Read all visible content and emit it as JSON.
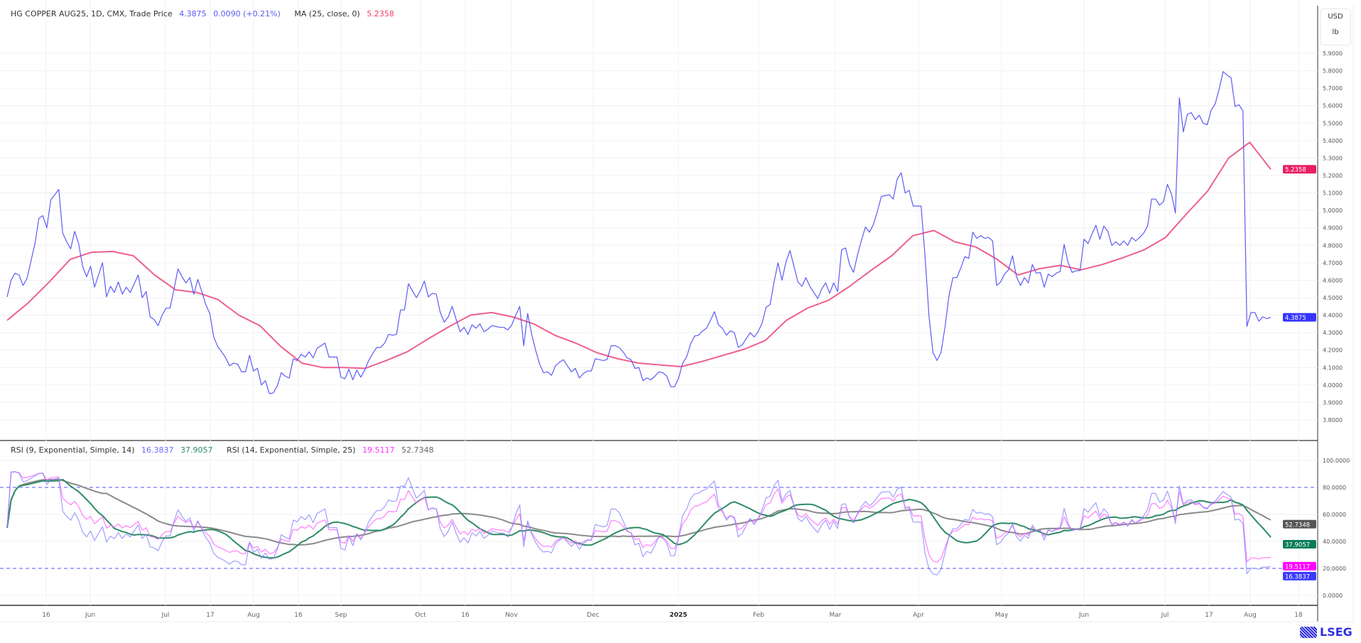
{
  "header": {
    "symbol": "HG COPPER AUG25, 1D, CMX, Trade Price",
    "last": "4.3875",
    "change": "0.0090 (+0.21%)",
    "ma_label": "MA (25, close, 0)",
    "ma_value": "5.2358"
  },
  "rsi_header": {
    "rsi1_label": "RSI (9, Exponential, Simple, 14)",
    "rsi1_value": "16.3837",
    "rsi1_ma_value": "37.9057",
    "rsi2_label": "RSI (14, Exponential, Simple, 25)",
    "rsi2_value": "19.5117",
    "rsi2_ma_value": "52.7348"
  },
  "unit": {
    "currency": "USD",
    "per": "lb"
  },
  "logo": "LSEG",
  "colors": {
    "price": "#5b5bf5",
    "ma": "#ef5f8c",
    "rsi1": "#7f7fff",
    "rsi2": "#ff66ff",
    "rsi1_ma": "#2e8b64",
    "rsi2_ma": "#8a8a8a",
    "price_tag": "#3535ff",
    "ma_tag": "#e91e63",
    "rsi1_tag": "#3a3aff",
    "rsi2_tag": "#ff00ff",
    "rsi1_ma_tag": "#0a7d5a",
    "rsi2_ma_tag": "#555555",
    "band": "#5050ff"
  },
  "chart_data": [
    {
      "type": "line",
      "title": "HG COPPER AUG25, 1D, CMX, Trade Price",
      "ylim": [
        3.7,
        6.0
      ],
      "y_ticks": [
        "5.9000",
        "5.8000",
        "5.7000",
        "5.6000",
        "5.5000",
        "5.4000",
        "5.3000",
        "5.2000",
        "5.1000",
        "5.0000",
        "4.9000",
        "4.8000",
        "4.7000",
        "4.6000",
        "4.5000",
        "4.4000",
        "4.3000",
        "4.2000",
        "4.1000",
        "4.0000",
        "3.9000",
        "3.8000"
      ],
      "x_ticks": [
        "16",
        "Jun",
        "Jul",
        "17",
        "Aug",
        "16",
        "Sep",
        "Oct",
        "16",
        "Nov",
        "Dec",
        "2025",
        "Feb",
        "Mar",
        "Apr",
        "May",
        "Jun",
        "Jul",
        "17",
        "Aug",
        "18"
      ],
      "grid": true,
      "series": [
        {
          "name": "Trade Price",
          "values": [
            4.505,
            4.6,
            4.64,
            4.63,
            4.57,
            4.61,
            4.71,
            4.81,
            4.955,
            4.97,
            4.9,
            5.06,
            5.09,
            5.12,
            4.87,
            4.82,
            4.78,
            4.88,
            4.81,
            4.68,
            4.62,
            4.68,
            4.56,
            4.63,
            4.7,
            4.505,
            4.565,
            4.53,
            4.59,
            4.52,
            4.56,
            4.53,
            4.58,
            4.63,
            4.5,
            4.535,
            4.39,
            4.375,
            4.34,
            4.4,
            4.44,
            4.44,
            4.55,
            4.665,
            4.62,
            4.585,
            4.615,
            4.52,
            4.605,
            4.535,
            4.46,
            4.41,
            4.275,
            4.22,
            4.19,
            4.155,
            4.11,
            4.125,
            4.12,
            4.075,
            4.075,
            4.17,
            4.08,
            4.095,
            4.0,
            4.025,
            3.95,
            3.955,
            3.995,
            4.07,
            4.05,
            4.04,
            4.15,
            4.14,
            4.175,
            4.16,
            4.19,
            4.155,
            4.21,
            4.225,
            4.24,
            4.16,
            4.16,
            4.16,
            4.045,
            4.035,
            4.09,
            4.03,
            4.085,
            4.045,
            4.085,
            4.14,
            4.18,
            4.215,
            4.215,
            4.24,
            4.29,
            4.285,
            4.29,
            4.43,
            4.43,
            4.58,
            4.54,
            4.5,
            4.54,
            4.595,
            4.505,
            4.525,
            4.52,
            4.415,
            4.36,
            4.39,
            4.45,
            4.375,
            4.305,
            4.33,
            4.29,
            4.345,
            4.325,
            4.35,
            4.305,
            4.32,
            4.34,
            4.335,
            4.33,
            4.33,
            4.315,
            4.345,
            4.4,
            4.45,
            4.225,
            4.41,
            4.29,
            4.2,
            4.12,
            4.07,
            4.075,
            4.055,
            4.11,
            4.13,
            4.145,
            4.11,
            4.075,
            4.095,
            4.04,
            4.065,
            4.08,
            4.08,
            4.15,
            4.145,
            4.14,
            4.145,
            4.225,
            4.225,
            4.215,
            4.19,
            4.155,
            4.145,
            4.095,
            4.1,
            4.025,
            4.04,
            4.03,
            4.05,
            4.075,
            4.07,
            4.05,
            3.99,
            3.99,
            4.04,
            4.125,
            4.16,
            4.235,
            4.28,
            4.285,
            4.31,
            4.325,
            4.37,
            4.42,
            4.345,
            4.325,
            4.285,
            4.31,
            4.3,
            4.215,
            4.23,
            4.265,
            4.3,
            4.275,
            4.305,
            4.355,
            4.445,
            4.46,
            4.59,
            4.7,
            4.6,
            4.705,
            4.77,
            4.68,
            4.59,
            4.565,
            4.615,
            4.565,
            4.53,
            4.495,
            4.55,
            4.585,
            4.525,
            4.585,
            4.535,
            4.775,
            4.785,
            4.69,
            4.645,
            4.745,
            4.83,
            4.905,
            4.875,
            4.92,
            4.995,
            5.08,
            5.085,
            5.09,
            5.065,
            5.18,
            5.215,
            5.1,
            5.115,
            5.025,
            5.025,
            5.025,
            4.735,
            4.39,
            4.185,
            4.14,
            4.185,
            4.33,
            4.51,
            4.615,
            4.615,
            4.67,
            4.735,
            4.725,
            4.875,
            4.84,
            4.855,
            4.84,
            4.845,
            4.825,
            4.57,
            4.59,
            4.635,
            4.66,
            4.74,
            4.62,
            4.57,
            4.615,
            4.585,
            4.69,
            4.64,
            4.645,
            4.56,
            4.635,
            4.62,
            4.64,
            4.65,
            4.805,
            4.7,
            4.645,
            4.655,
            4.655,
            4.835,
            4.81,
            4.865,
            4.915,
            4.835,
            4.91,
            4.88,
            4.8,
            4.82,
            4.8,
            4.825,
            4.8,
            4.845,
            4.825,
            4.845,
            4.87,
            4.91,
            5.065,
            5.065,
            5.03,
            5.05,
            5.15,
            5.095,
            4.985,
            5.645,
            5.45,
            5.55,
            5.56,
            5.52,
            5.545,
            5.5,
            5.49,
            5.575,
            5.61,
            5.695,
            5.795,
            5.775,
            5.76,
            5.595,
            5.605,
            5.57,
            4.335,
            4.415,
            4.415,
            4.365,
            4.39,
            4.38,
            4.3875
          ]
        },
        {
          "name": "MA (25, close, 0)",
          "values": [
            4.37,
            4.47,
            4.59,
            4.72,
            4.76,
            4.765,
            4.74,
            4.63,
            4.545,
            4.53,
            4.49,
            4.4,
            4.34,
            4.22,
            4.125,
            4.1,
            4.1,
            4.095,
            4.14,
            4.19,
            4.265,
            4.335,
            4.4,
            4.415,
            4.39,
            4.35,
            4.285,
            4.24,
            4.185,
            4.15,
            4.125,
            4.115,
            4.105,
            4.135,
            4.17,
            4.205,
            4.255,
            4.37,
            4.44,
            4.485,
            4.565,
            4.655,
            4.74,
            4.855,
            4.885,
            4.82,
            4.79,
            4.72,
            4.63,
            4.665,
            4.685,
            4.66,
            4.69,
            4.73,
            4.775,
            4.845,
            4.98,
            5.11,
            5.3,
            5.39,
            5.2358
          ]
        }
      ],
      "last_values": {
        "price": "4.3875",
        "ma": "5.2358"
      }
    },
    {
      "type": "line",
      "title": "RSI",
      "ylim": [
        0,
        100
      ],
      "y_ticks": [
        "100.0000",
        "80.0000",
        "60.0000",
        "40.0000",
        "20.0000",
        "0.0000"
      ],
      "bands": [
        80,
        20
      ],
      "series": [
        {
          "name": "RSI (9, Exponential, Simple, 14)",
          "length": 9,
          "ma_length": 14
        },
        {
          "name": "RSI (14, Exponential, Simple, 25)",
          "length": 14,
          "ma_length": 25
        }
      ],
      "last_values": {
        "rsi1": "16.3837",
        "rsi1_ma": "37.9057",
        "rsi2": "19.5117",
        "rsi2_ma": "52.7348"
      }
    }
  ]
}
